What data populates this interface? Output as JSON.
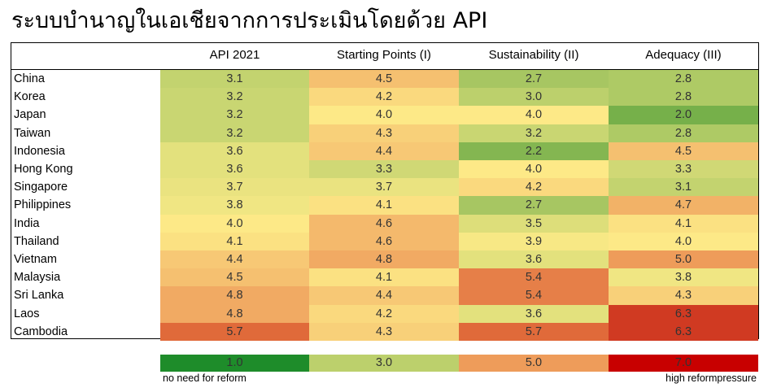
{
  "title": "ระบบบำนาญในเอเชียจากการประเมินโดยด้วย API",
  "chart_data": {
    "type": "table",
    "columns": [
      "API 2021",
      "Starting Points (I)",
      "Sustainability (II)",
      "Adequacy (III)"
    ],
    "rows": [
      {
        "country": "China",
        "values": [
          "3.1",
          "4.5",
          "2.7",
          "2.8"
        ]
      },
      {
        "country": "Korea",
        "values": [
          "3.2",
          "4.2",
          "3.0",
          "2.8"
        ]
      },
      {
        "country": "Japan",
        "values": [
          "3.2",
          "4.0",
          "4.0",
          "2.0"
        ]
      },
      {
        "country": "Taiwan",
        "values": [
          "3.2",
          "4.3",
          "3.2",
          "2.8"
        ]
      },
      {
        "country": "Indonesia",
        "values": [
          "3.6",
          "4.4",
          "2.2",
          "4.5"
        ]
      },
      {
        "country": "Hong Kong",
        "values": [
          "3.6",
          "3.3",
          "4.0",
          "3.3"
        ]
      },
      {
        "country": "Singapore",
        "values": [
          "3.7",
          "3.7",
          "4.2",
          "3.1"
        ]
      },
      {
        "country": "Philippines",
        "values": [
          "3.8",
          "4.1",
          "2.7",
          "4.7"
        ]
      },
      {
        "country": "India",
        "values": [
          "4.0",
          "4.6",
          "3.5",
          "4.1"
        ]
      },
      {
        "country": "Thailand",
        "values": [
          "4.1",
          "4.6",
          "3.9",
          "4.0"
        ]
      },
      {
        "country": "Vietnam",
        "values": [
          "4.4",
          "4.8",
          "3.6",
          "5.0"
        ]
      },
      {
        "country": "Malaysia",
        "values": [
          "4.5",
          "4.1",
          "5.4",
          "3.8"
        ]
      },
      {
        "country": "Sri Lanka",
        "values": [
          "4.8",
          "4.4",
          "5.4",
          "4.3"
        ]
      },
      {
        "country": "Laos",
        "values": [
          "4.8",
          "4.2",
          "3.6",
          "6.3"
        ]
      },
      {
        "country": "Cambodia",
        "values": [
          "5.7",
          "4.3",
          "5.7",
          "6.3"
        ]
      }
    ],
    "color_scale": [
      {
        "value": 1.0,
        "label": "1.0",
        "color": "#1e8c2a"
      },
      {
        "value": 3.0,
        "label": "3.0",
        "color": "#bcd06c"
      },
      {
        "value": 5.0,
        "label": "5.0",
        "color": "#ee9c5a"
      },
      {
        "value": 7.0,
        "label": "7.0",
        "color": "#c80000"
      }
    ],
    "legend_low_text": "no need for reform",
    "legend_high_text": "high reformpressure"
  }
}
